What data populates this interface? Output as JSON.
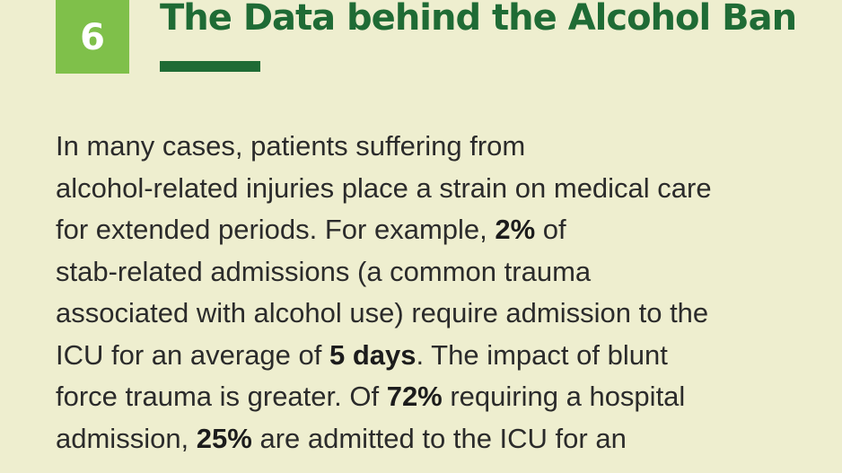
{
  "section": {
    "number": "6",
    "title": "The Data behind the Alcohol Ban"
  },
  "colors": {
    "background": "#eeeecf",
    "badge": "#7fc04a",
    "title": "#1f6b35",
    "text": "#2b2b2b"
  },
  "paragraph": {
    "line1": "In many cases, patients suffering from",
    "line2": "alcohol-related injuries place a strain on medical care",
    "line3_before": "for extended periods. For example, ",
    "line3_bold": "2%",
    "line3_after": " of",
    "line4": "stab-related admissions (a common trauma",
    "line5": "associated with alcohol use) require admission to the",
    "line6_before": "ICU for an average of ",
    "line6_bold": "5 days",
    "line6_after": ". The impact of blunt",
    "line7_before": "force trauma is greater. Of ",
    "line7_bold": "72%",
    "line7_after": " requiring a hospital",
    "line8_before": "admission, ",
    "line8_bold": "25%",
    "line8_after": " are admitted to the ICU for an"
  }
}
